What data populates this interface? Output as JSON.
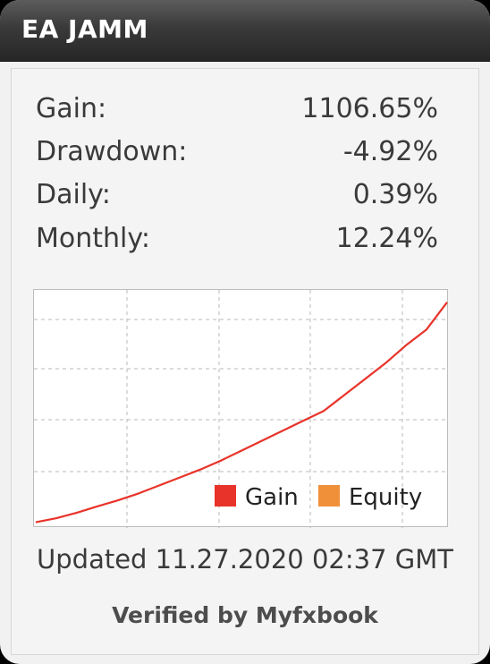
{
  "header": {
    "title": "EA JAMM"
  },
  "stats": [
    {
      "label": "Gain:",
      "value": "1106.65%"
    },
    {
      "label": "Drawdown:",
      "value": "-4.92%"
    },
    {
      "label": "Daily:",
      "value": "0.39%"
    },
    {
      "label": "Monthly:",
      "value": "12.24%"
    }
  ],
  "colors": {
    "gain": "#e8332a",
    "equity": "#f0913a",
    "grid": "#b8b8b8"
  },
  "chart_data": {
    "type": "line",
    "title": "",
    "xlabel": "",
    "ylabel": "",
    "grid": true,
    "legend_position": "bottom-right",
    "legend": [
      "Gain",
      "Equity"
    ],
    "series": [
      {
        "name": "Gain",
        "x": [
          0,
          5,
          10,
          15,
          20,
          25,
          30,
          35,
          40,
          45,
          50,
          55,
          60,
          65,
          70,
          75,
          80,
          85,
          90,
          95,
          100
        ],
        "values": [
          0,
          20,
          48,
          80,
          110,
          145,
          185,
          225,
          265,
          310,
          360,
          410,
          460,
          510,
          560,
          640,
          720,
          800,
          890,
          970,
          1106.65
        ]
      },
      {
        "name": "Equity",
        "x": [
          0,
          5,
          10,
          15,
          20,
          25,
          30,
          35,
          40,
          45,
          50,
          55,
          60,
          65,
          70,
          75,
          80,
          85,
          90,
          95,
          100
        ],
        "values": [
          0,
          20,
          48,
          80,
          110,
          145,
          185,
          225,
          265,
          310,
          360,
          410,
          460,
          510,
          560,
          640,
          720,
          800,
          890,
          970,
          1106.65
        ]
      }
    ],
    "xlim": [
      0,
      100
    ],
    "ylim": [
      -20,
      1160
    ]
  },
  "footer": {
    "updated": "Updated 11.27.2020 02:37 GMT",
    "verified": "Verified by Myfxbook"
  }
}
